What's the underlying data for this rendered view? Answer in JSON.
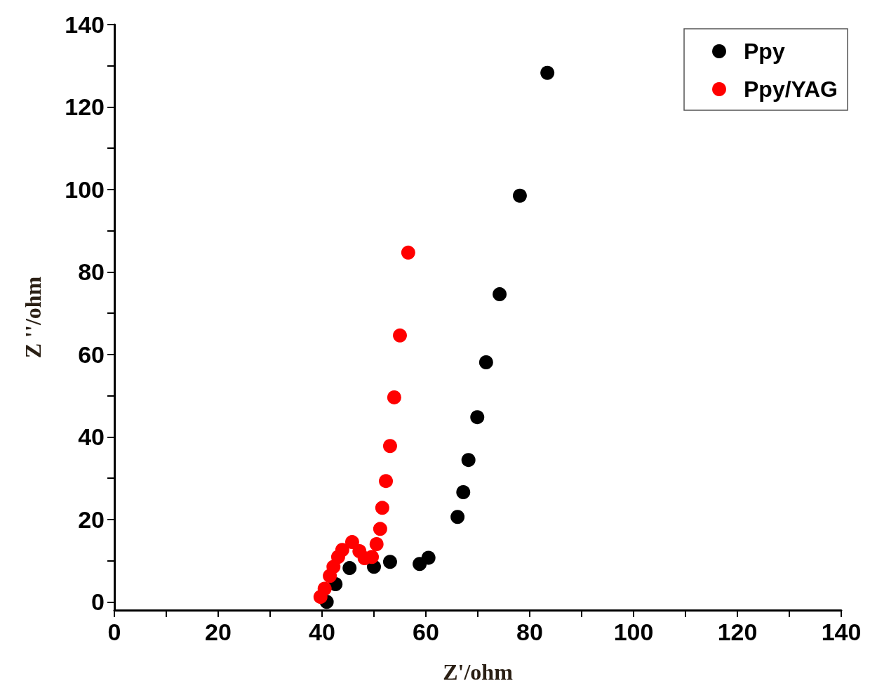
{
  "chart_data": {
    "type": "scatter",
    "xlabel": "Z'/ohm",
    "ylabel": "Z ''/ohm",
    "xlim": [
      0,
      140
    ],
    "ylim": [
      -2,
      140
    ],
    "xticks": [
      0,
      {
        "value": 10,
        "label": null
      },
      20,
      {
        "value": 30,
        "label": null
      },
      40,
      {
        "value": 50,
        "label": null
      },
      60,
      {
        "value": 70,
        "label": null
      },
      80,
      {
        "value": 90,
        "label": null
      },
      100,
      {
        "value": 110,
        "label": null
      },
      120,
      {
        "value": 130,
        "label": null
      },
      140
    ],
    "yticks": [
      0,
      {
        "value": 10,
        "label": null
      },
      20,
      {
        "value": 30,
        "label": null
      },
      40,
      {
        "value": 50,
        "label": null
      },
      60,
      {
        "value": 70,
        "label": null
      },
      80,
      {
        "value": 90,
        "label": null
      },
      100,
      {
        "value": 110,
        "label": null
      },
      120,
      {
        "value": 130,
        "label": null
      },
      140
    ],
    "grid": false,
    "legend": "top right",
    "marker": "circle",
    "series": [
      {
        "name": "Ppy",
        "color": "#000000",
        "x": [
          40.9,
          42.6,
          45.3,
          50.0,
          53.1,
          58.8,
          60.5,
          66.1,
          67.2,
          68.2,
          69.9,
          71.6,
          74.2,
          78.1,
          83.4
        ],
        "values": [
          0,
          4.3,
          8.2,
          8.5,
          9.7,
          9.2,
          10.7,
          20.6,
          26.6,
          34.4,
          44.8,
          58.1,
          74.6,
          98.5,
          128.3
        ]
      },
      {
        "name": "Ppy/YAG",
        "color": "#ff0000",
        "x": [
          39.7,
          40.5,
          41.5,
          42.2,
          43.1,
          43.9,
          45.8,
          47.2,
          48.2,
          49.6,
          50.5,
          51.2,
          51.6,
          52.3,
          53.1,
          53.9,
          55.0,
          56.6
        ],
        "values": [
          1.2,
          3.2,
          6.3,
          8.5,
          10.9,
          12.6,
          14.5,
          12.3,
          10.6,
          10.9,
          14.0,
          17.7,
          22.8,
          29.3,
          37.8,
          49.6,
          64.6,
          84.7
        ]
      }
    ]
  }
}
